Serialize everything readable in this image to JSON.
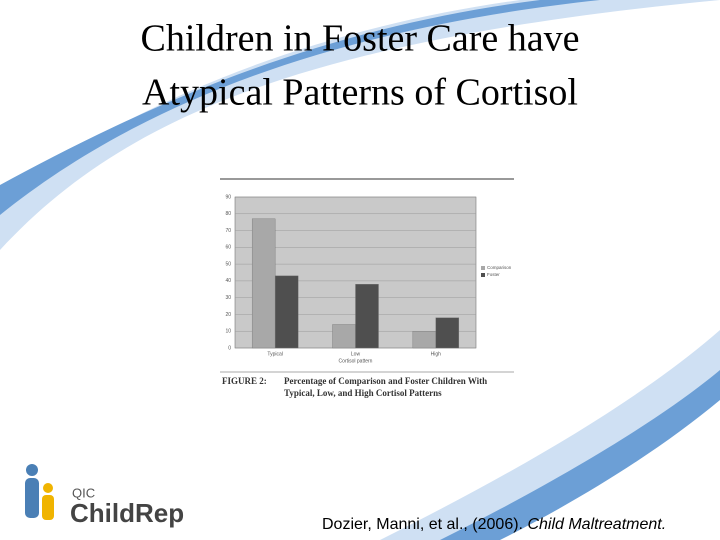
{
  "title_lines": [
    "Children in Foster Care have",
    "Atypical Patterns of Cortisol"
  ],
  "citation": {
    "authors": "Dozier, Manni, et al., (2006).",
    "journal": "Child Maltreatment."
  },
  "logo": {
    "top": "QIC",
    "name": "ChildRep"
  },
  "chart_data": {
    "type": "bar",
    "categories": [
      "Typical",
      "Low",
      "High"
    ],
    "series": [
      {
        "name": "Comparison",
        "color": "#a8a8a8",
        "values": [
          77,
          14,
          10
        ]
      },
      {
        "name": "Foster",
        "color": "#4f4f4f",
        "values": [
          43,
          38,
          18
        ]
      }
    ],
    "ylim": [
      0,
      90
    ],
    "yticks": [
      0,
      10,
      20,
      30,
      40,
      50,
      60,
      70,
      80,
      90
    ],
    "x_label": "Cortisol pattern",
    "caption_label": "FIGURE 2:",
    "caption_lines": [
      "Percentage of Comparison and Foster Children With",
      "Typical, Low, and High Cortisol Patterns"
    ],
    "grid": true,
    "legend": "right"
  }
}
